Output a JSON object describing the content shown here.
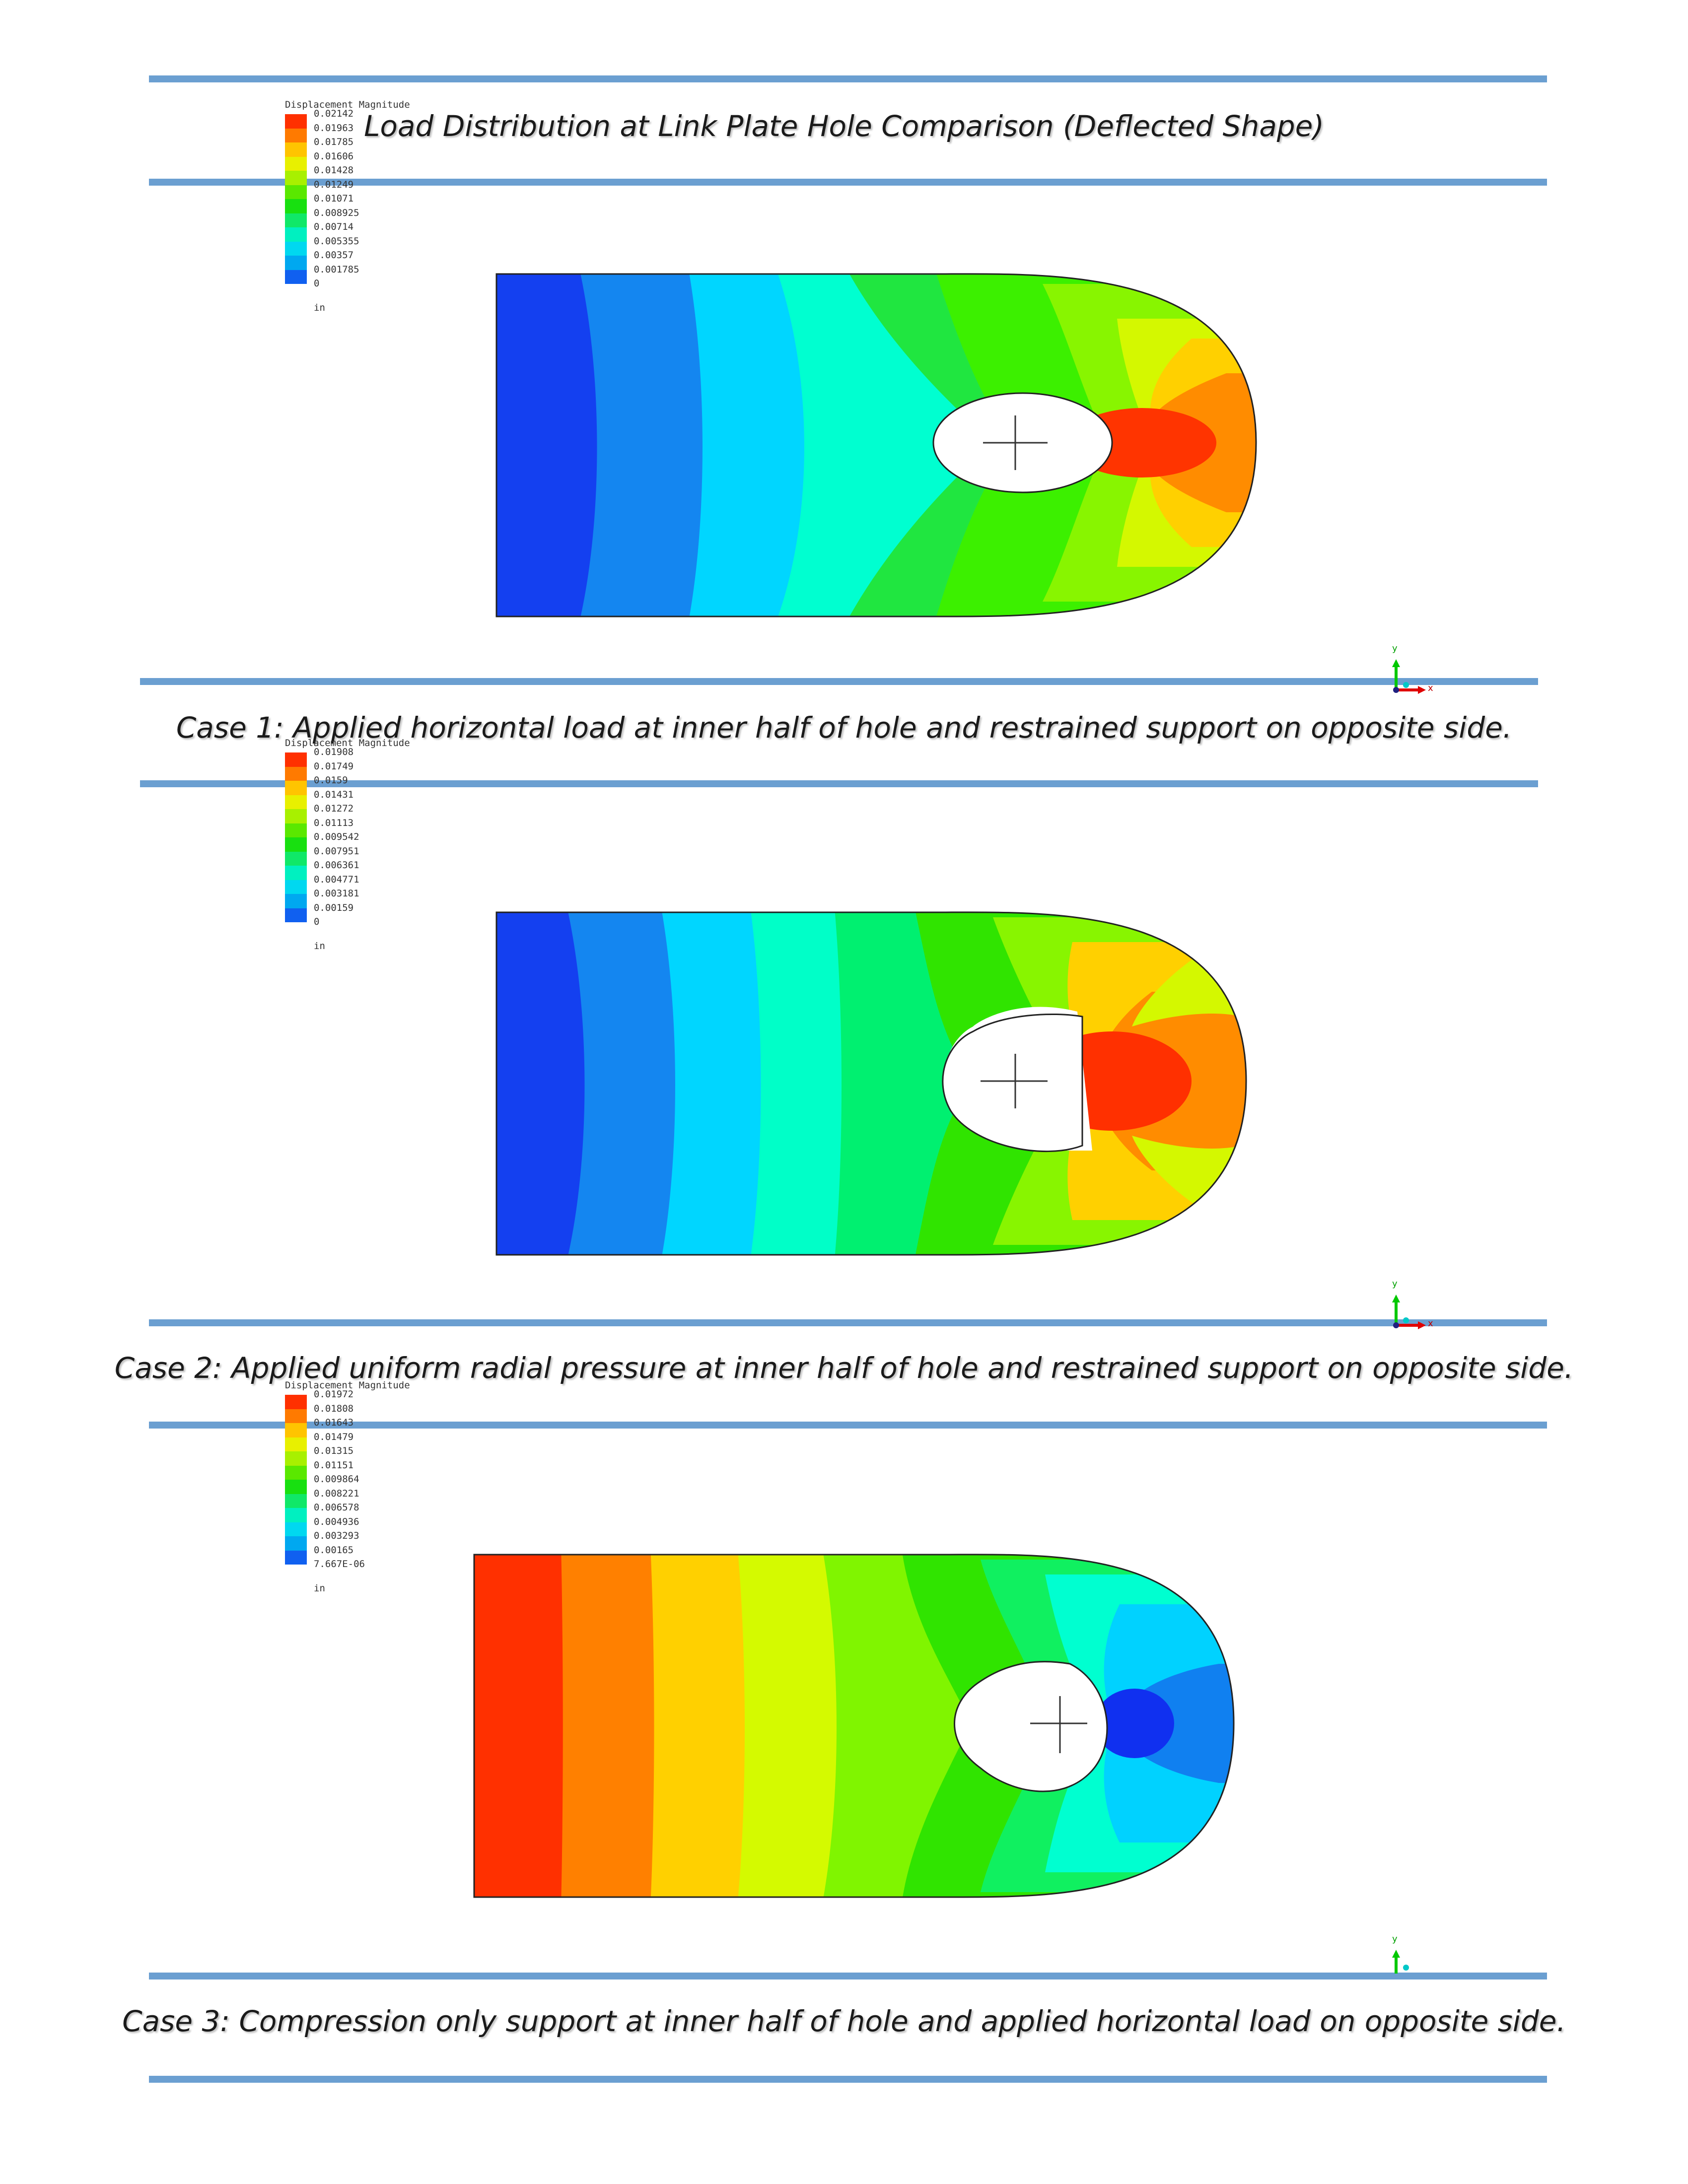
{
  "title": "Load Distribution at Link Plate Hole Comparison (Deflected Shape)",
  "cases": [
    {
      "caption": "Case 1: Applied horizontal load at inner half of hole and restrained support on opposite side.",
      "legend": {
        "title": "Displacement Magnitude",
        "unit": "in",
        "values": [
          "0.02142",
          "0.01963",
          "0.01785",
          "0.01606",
          "0.01428",
          "0.01249",
          "0.01071",
          "0.008925",
          "0.00714",
          "0.005355",
          "0.00357",
          "0.001785",
          "0"
        ]
      },
      "axes": {
        "x": "x",
        "y": "y"
      }
    },
    {
      "caption": "Case 2: Applied uniform radial pressure at inner half of hole and restrained support on opposite side.",
      "legend": {
        "title": "Displacement Magnitude",
        "unit": "in",
        "values": [
          "0.01908",
          "0.01749",
          "0.0159",
          "0.01431",
          "0.01272",
          "0.01113",
          "0.009542",
          "0.007951",
          "0.006361",
          "0.004771",
          "0.003181",
          "0.00159",
          "0"
        ]
      },
      "axes": {
        "x": "x",
        "y": "y"
      }
    },
    {
      "caption": "Case 3: Compression only support at inner half of hole and applied horizontal load on opposite side.",
      "legend": {
        "title": "Displacement Magnitude",
        "unit": "in",
        "values": [
          "0.01972",
          "0.01808",
          "0.01643",
          "0.01479",
          "0.01315",
          "0.01151",
          "0.009864",
          "0.008221",
          "0.006578",
          "0.004936",
          "0.003293",
          "0.00165",
          "7.667E-06"
        ]
      },
      "axes": {
        "y": "y"
      }
    }
  ],
  "legend_colors": [
    "#ff3000",
    "#ff7a00",
    "#ffc400",
    "#e8f000",
    "#a8f000",
    "#5ae800",
    "#18e010",
    "#10e868",
    "#00f0c0",
    "#00d8f0",
    "#00a8f0",
    "#1060f0",
    "#1030e0"
  ]
}
